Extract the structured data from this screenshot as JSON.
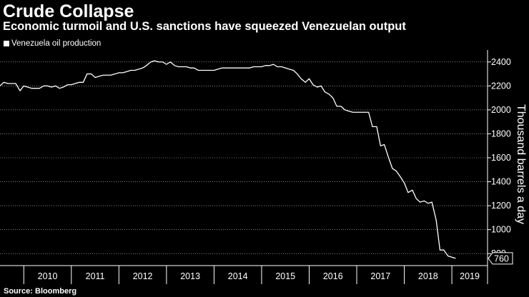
{
  "header": {
    "title": "Crude Collapse",
    "subtitle": "Economic turmoil and U.S. sanctions have squeezed Venezuelan output"
  },
  "footer": {
    "source": "Source: Bloomberg"
  },
  "colors": {
    "background": "#000000",
    "line": "#ffffff",
    "grid": "#ffffff"
  },
  "chart_data": {
    "type": "line",
    "title": "Crude Collapse",
    "subtitle": "Economic turmoil and U.S. sanctions have squeezed Venezuelan output",
    "xlabel": "",
    "ylabel": "Thousand barrels a day",
    "legend": {
      "position": "top-left",
      "entries": [
        "Venezuela oil production"
      ]
    },
    "x_domain": [
      2009.5,
      2019.75
    ],
    "ylim": [
      700,
      2500
    ],
    "yticks": [
      800,
      1000,
      1200,
      1400,
      1600,
      1800,
      2000,
      2200,
      2400
    ],
    "year_labels": [
      "2010",
      "2011",
      "2012",
      "2013",
      "2014",
      "2015",
      "2016",
      "2017",
      "2018",
      "2019"
    ],
    "last_value_label": "760",
    "series": [
      {
        "name": "Venezuela oil production",
        "points": [
          [
            2009.5,
            2200
          ],
          [
            2009.58,
            2230
          ],
          [
            2009.67,
            2220
          ],
          [
            2009.75,
            2220
          ],
          [
            2009.83,
            2220
          ],
          [
            2009.92,
            2160
          ],
          [
            2010.0,
            2200
          ],
          [
            2010.08,
            2190
          ],
          [
            2010.17,
            2180
          ],
          [
            2010.25,
            2180
          ],
          [
            2010.33,
            2180
          ],
          [
            2010.42,
            2200
          ],
          [
            2010.5,
            2200
          ],
          [
            2010.58,
            2190
          ],
          [
            2010.67,
            2200
          ],
          [
            2010.75,
            2180
          ],
          [
            2010.83,
            2190
          ],
          [
            2010.92,
            2210
          ],
          [
            2011.0,
            2210
          ],
          [
            2011.08,
            2220
          ],
          [
            2011.17,
            2230
          ],
          [
            2011.25,
            2230
          ],
          [
            2011.33,
            2300
          ],
          [
            2011.42,
            2300
          ],
          [
            2011.5,
            2270
          ],
          [
            2011.58,
            2280
          ],
          [
            2011.67,
            2290
          ],
          [
            2011.75,
            2290
          ],
          [
            2011.83,
            2290
          ],
          [
            2011.92,
            2300
          ],
          [
            2012.0,
            2310
          ],
          [
            2012.08,
            2310
          ],
          [
            2012.17,
            2320
          ],
          [
            2012.25,
            2330
          ],
          [
            2012.33,
            2330
          ],
          [
            2012.42,
            2340
          ],
          [
            2012.5,
            2350
          ],
          [
            2012.58,
            2370
          ],
          [
            2012.67,
            2400
          ],
          [
            2012.75,
            2410
          ],
          [
            2012.83,
            2400
          ],
          [
            2012.92,
            2400
          ],
          [
            2013.0,
            2380
          ],
          [
            2013.08,
            2400
          ],
          [
            2013.17,
            2370
          ],
          [
            2013.25,
            2360
          ],
          [
            2013.33,
            2360
          ],
          [
            2013.42,
            2360
          ],
          [
            2013.5,
            2350
          ],
          [
            2013.58,
            2350
          ],
          [
            2013.67,
            2330
          ],
          [
            2013.75,
            2330
          ],
          [
            2013.83,
            2330
          ],
          [
            2013.92,
            2330
          ],
          [
            2014.0,
            2330
          ],
          [
            2014.08,
            2340
          ],
          [
            2014.17,
            2350
          ],
          [
            2014.25,
            2350
          ],
          [
            2014.33,
            2350
          ],
          [
            2014.42,
            2350
          ],
          [
            2014.5,
            2350
          ],
          [
            2014.58,
            2350
          ],
          [
            2014.67,
            2350
          ],
          [
            2014.75,
            2350
          ],
          [
            2014.83,
            2360
          ],
          [
            2014.92,
            2360
          ],
          [
            2015.0,
            2360
          ],
          [
            2015.08,
            2370
          ],
          [
            2015.17,
            2370
          ],
          [
            2015.25,
            2380
          ],
          [
            2015.33,
            2360
          ],
          [
            2015.42,
            2360
          ],
          [
            2015.5,
            2350
          ],
          [
            2015.58,
            2340
          ],
          [
            2015.67,
            2330
          ],
          [
            2015.75,
            2300
          ],
          [
            2015.83,
            2260
          ],
          [
            2015.92,
            2230
          ],
          [
            2016.0,
            2260
          ],
          [
            2016.08,
            2210
          ],
          [
            2016.17,
            2190
          ],
          [
            2016.25,
            2200
          ],
          [
            2016.33,
            2150
          ],
          [
            2016.42,
            2130
          ],
          [
            2016.5,
            2100
          ],
          [
            2016.58,
            2030
          ],
          [
            2016.67,
            2030
          ],
          [
            2016.75,
            2000
          ],
          [
            2016.83,
            1990
          ],
          [
            2016.92,
            1980
          ],
          [
            2017.0,
            1980
          ],
          [
            2017.08,
            1980
          ],
          [
            2017.17,
            1980
          ],
          [
            2017.25,
            1980
          ],
          [
            2017.33,
            1860
          ],
          [
            2017.42,
            1860
          ],
          [
            2017.5,
            1700
          ],
          [
            2017.58,
            1710
          ],
          [
            2017.67,
            1600
          ],
          [
            2017.75,
            1510
          ],
          [
            2017.83,
            1490
          ],
          [
            2017.92,
            1440
          ],
          [
            2018.0,
            1390
          ],
          [
            2018.08,
            1310
          ],
          [
            2018.17,
            1330
          ],
          [
            2018.25,
            1260
          ],
          [
            2018.33,
            1230
          ],
          [
            2018.42,
            1240
          ],
          [
            2018.5,
            1220
          ],
          [
            2018.58,
            1230
          ],
          [
            2018.67,
            1080
          ],
          [
            2018.75,
            830
          ],
          [
            2018.83,
            830
          ],
          [
            2018.92,
            780
          ],
          [
            2019.0,
            770
          ],
          [
            2019.08,
            760
          ]
        ]
      }
    ]
  }
}
